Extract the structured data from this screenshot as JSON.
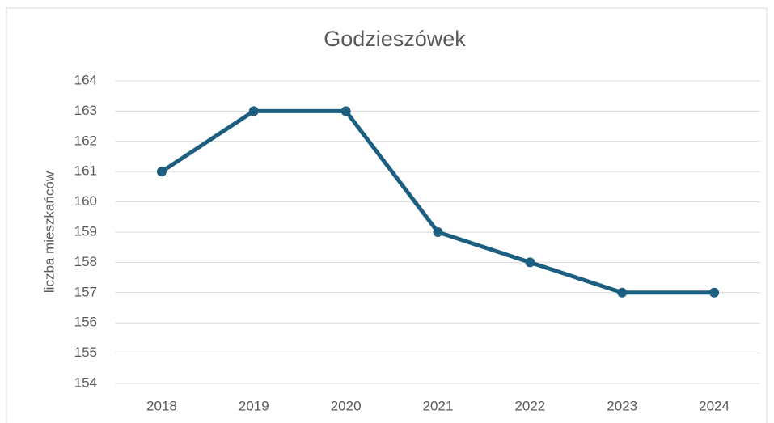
{
  "chart_data": {
    "type": "line",
    "title": "Godzieszówek",
    "y_label": "liczba mieszkańców",
    "categories": [
      "2018",
      "2019",
      "2020",
      "2021",
      "2022",
      "2023",
      "2024"
    ],
    "series": [
      {
        "name": "liczba mieszkańców",
        "color": "#1d5f80",
        "values": [
          161,
          163,
          163,
          159,
          158,
          157,
          157
        ]
      }
    ],
    "ylim": [
      154,
      164
    ],
    "yticks": [
      154,
      155,
      156,
      157,
      158,
      159,
      160,
      161,
      162,
      163,
      164
    ],
    "grid": true
  }
}
